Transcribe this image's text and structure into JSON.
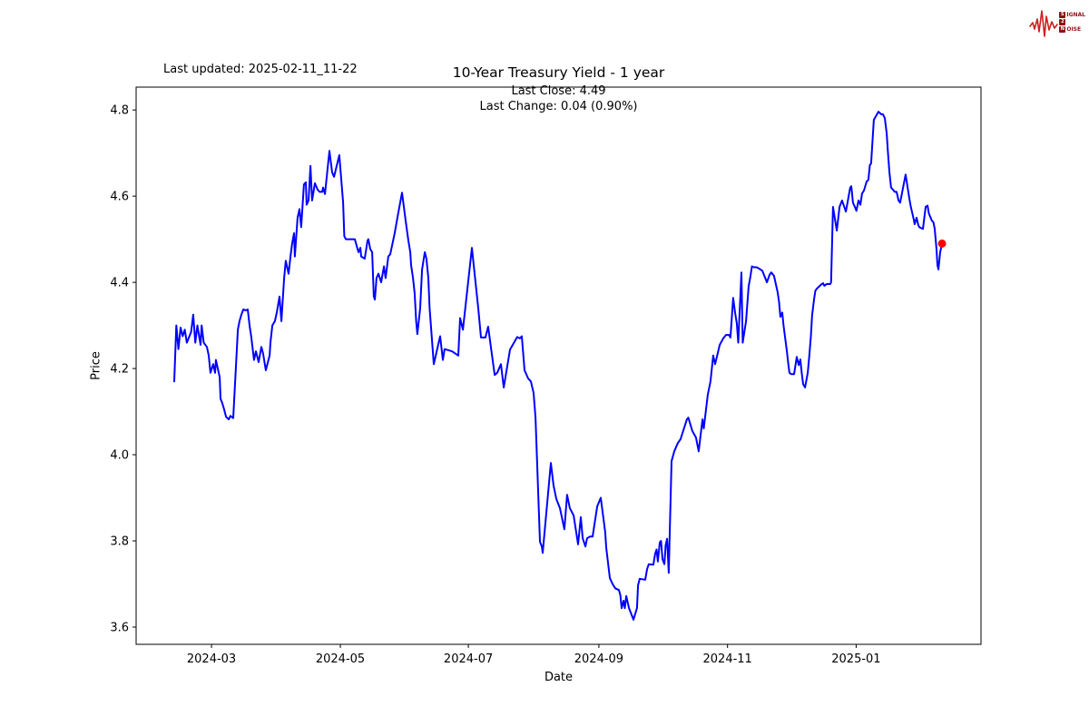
{
  "page": {
    "background": "#ffffff"
  },
  "header": {
    "last_updated": "Last updated: 2025-02-11_11-22",
    "title": "10-Year Treasury Yield - 1 year",
    "subtitle_line1": "Last Close: 4.49",
    "subtitle_line2": "Last Change: 0.04 (0.90%)"
  },
  "logo": {
    "name": "Signal 2 Noise",
    "row1_box": "S",
    "row1_rest": "IGNAL",
    "row2_box": "2",
    "row3_box": "N",
    "row3_rest": "OISE",
    "text_color": "#8b1414",
    "wave_color": "#cc1f1f"
  },
  "chart_data": {
    "type": "line",
    "title": "10-Year Treasury Yield - 1 year",
    "xlabel": "Date",
    "ylabel": "Price",
    "legend": "none",
    "grid": false,
    "line_color": "#0000ff",
    "line_width": 2,
    "marker_color": "#ff0000",
    "last_close": 4.49,
    "last_change": "0.04 (0.90%)",
    "x_axis": {
      "unit": "days since 2024-02-12",
      "start_date": "2024-02-12",
      "end_date": "2025-02-11",
      "lim": [
        -18.1,
        383.2
      ],
      "ticks": [
        {
          "d": 17.7,
          "label": "2024-03"
        },
        {
          "d": 78.9,
          "label": "2024-05"
        },
        {
          "d": 139.7,
          "label": "2024-07"
        },
        {
          "d": 201.7,
          "label": "2024-09"
        },
        {
          "d": 262.8,
          "label": "2024-11"
        },
        {
          "d": 323.9,
          "label": "2025-01"
        }
      ]
    },
    "y_axis": {
      "lim": [
        3.56,
        4.853
      ],
      "ticks": [
        {
          "v": 4.8,
          "label": "4.8"
        },
        {
          "v": 4.6,
          "label": "4.6"
        },
        {
          "v": 4.4,
          "label": "4.4"
        },
        {
          "v": 4.2,
          "label": "4.2"
        },
        {
          "v": 4.0,
          "label": "4.0"
        },
        {
          "v": 3.8,
          "label": "3.8"
        },
        {
          "v": 3.6,
          "label": "3.6"
        }
      ]
    },
    "points": [
      [
        0,
        4.17
      ],
      [
        1,
        4.3
      ],
      [
        2,
        4.245
      ],
      [
        3,
        4.295
      ],
      [
        4,
        4.275
      ],
      [
        5,
        4.29
      ],
      [
        6,
        4.26
      ],
      [
        8,
        4.285
      ],
      [
        9,
        4.325
      ],
      [
        10,
        4.26
      ],
      [
        11,
        4.3
      ],
      [
        12.5,
        4.255
      ],
      [
        13,
        4.3
      ],
      [
        14,
        4.26
      ],
      [
        15.5,
        4.25
      ],
      [
        16.4,
        4.23
      ],
      [
        17.2,
        4.19
      ],
      [
        18.5,
        4.21
      ],
      [
        19.4,
        4.19
      ],
      [
        19.8,
        4.22
      ],
      [
        21.6,
        4.18
      ],
      [
        22,
        4.13
      ],
      [
        22.8,
        4.12
      ],
      [
        23.7,
        4.105
      ],
      [
        24.6,
        4.088
      ],
      [
        25.9,
        4.082
      ],
      [
        26.7,
        4.09
      ],
      [
        28,
        4.085
      ],
      [
        29.3,
        4.205
      ],
      [
        30.2,
        4.29
      ],
      [
        31,
        4.31
      ],
      [
        31.9,
        4.325
      ],
      [
        32.8,
        4.337
      ],
      [
        34,
        4.335
      ],
      [
        34.9,
        4.337
      ],
      [
        35.8,
        4.3
      ],
      [
        36.6,
        4.273
      ],
      [
        37.9,
        4.22
      ],
      [
        38.8,
        4.24
      ],
      [
        40.1,
        4.215
      ],
      [
        41.4,
        4.25
      ],
      [
        42.2,
        4.235
      ],
      [
        43.5,
        4.196
      ],
      [
        45.3,
        4.23
      ],
      [
        45.7,
        4.26
      ],
      [
        46.6,
        4.3
      ],
      [
        47.8,
        4.31
      ],
      [
        48.7,
        4.33
      ],
      [
        50,
        4.367
      ],
      [
        50.9,
        4.31
      ],
      [
        52.2,
        4.41
      ],
      [
        53,
        4.45
      ],
      [
        54.3,
        4.42
      ],
      [
        55.2,
        4.46
      ],
      [
        56,
        4.49
      ],
      [
        56.9,
        4.514
      ],
      [
        57.3,
        4.46
      ],
      [
        58.6,
        4.55
      ],
      [
        59.5,
        4.57
      ],
      [
        60.3,
        4.528
      ],
      [
        61.6,
        4.627
      ],
      [
        62.5,
        4.632
      ],
      [
        62.9,
        4.58
      ],
      [
        63.8,
        4.59
      ],
      [
        64.7,
        4.67
      ],
      [
        65.5,
        4.59
      ],
      [
        66.8,
        4.63
      ],
      [
        68.1,
        4.615
      ],
      [
        69,
        4.61
      ],
      [
        70.3,
        4.61
      ],
      [
        70.7,
        4.62
      ],
      [
        71.6,
        4.605
      ],
      [
        73.7,
        4.705
      ],
      [
        75,
        4.655
      ],
      [
        75.9,
        4.645
      ],
      [
        78.4,
        4.695
      ],
      [
        80.2,
        4.585
      ],
      [
        80.8,
        4.507
      ],
      [
        81.5,
        4.5
      ],
      [
        83.2,
        4.5
      ],
      [
        85,
        4.5
      ],
      [
        85.8,
        4.5
      ],
      [
        87.5,
        4.47
      ],
      [
        88.4,
        4.48
      ],
      [
        88.8,
        4.46
      ],
      [
        90.5,
        4.455
      ],
      [
        91.8,
        4.497
      ],
      [
        92.2,
        4.5
      ],
      [
        93.1,
        4.477
      ],
      [
        94,
        4.47
      ],
      [
        94.8,
        4.367
      ],
      [
        95.3,
        4.36
      ],
      [
        96.1,
        4.41
      ],
      [
        97,
        4.42
      ],
      [
        98.3,
        4.4
      ],
      [
        99.6,
        4.437
      ],
      [
        100.4,
        4.41
      ],
      [
        101.7,
        4.46
      ],
      [
        102.6,
        4.465
      ],
      [
        104.7,
        4.514
      ],
      [
        106,
        4.55
      ],
      [
        108.2,
        4.608
      ],
      [
        109.9,
        4.543
      ],
      [
        111.2,
        4.497
      ],
      [
        112.1,
        4.47
      ],
      [
        112.5,
        4.44
      ],
      [
        113.4,
        4.41
      ],
      [
        114.2,
        4.375
      ],
      [
        114.9,
        4.31
      ],
      [
        115.5,
        4.28
      ],
      [
        116.8,
        4.34
      ],
      [
        117.7,
        4.43
      ],
      [
        119,
        4.47
      ],
      [
        119.8,
        4.455
      ],
      [
        120.7,
        4.41
      ],
      [
        121.3,
        4.34
      ],
      [
        123.3,
        4.21
      ],
      [
        126.3,
        4.275
      ],
      [
        127.6,
        4.22
      ],
      [
        128.4,
        4.245
      ],
      [
        131.9,
        4.24
      ],
      [
        134.9,
        4.23
      ],
      [
        135.8,
        4.317
      ],
      [
        137.1,
        4.29
      ],
      [
        141.4,
        4.48
      ],
      [
        144.4,
        4.34
      ],
      [
        145.7,
        4.272
      ],
      [
        147.8,
        4.272
      ],
      [
        149.1,
        4.297
      ],
      [
        152.2,
        4.185
      ],
      [
        153.4,
        4.19
      ],
      [
        155.2,
        4.21
      ],
      [
        156.5,
        4.156
      ],
      [
        159.5,
        4.244
      ],
      [
        160.8,
        4.255
      ],
      [
        162.9,
        4.273
      ],
      [
        164.2,
        4.27
      ],
      [
        165.1,
        4.275
      ],
      [
        166.4,
        4.196
      ],
      [
        168.1,
        4.177
      ],
      [
        169.4,
        4.17
      ],
      [
        170.7,
        4.143
      ],
      [
        171.6,
        4.086
      ],
      [
        173.7,
        3.798
      ],
      [
        174.6,
        3.787
      ],
      [
        175,
        3.772
      ],
      [
        178.9,
        3.981
      ],
      [
        180.2,
        3.928
      ],
      [
        181.5,
        3.897
      ],
      [
        183.2,
        3.876
      ],
      [
        185.3,
        3.827
      ],
      [
        186.6,
        3.907
      ],
      [
        187.9,
        3.876
      ],
      [
        189.7,
        3.859
      ],
      [
        191.8,
        3.792
      ],
      [
        193.1,
        3.855
      ],
      [
        194,
        3.806
      ],
      [
        195.3,
        3.787
      ],
      [
        196.1,
        3.806
      ],
      [
        197.4,
        3.81
      ],
      [
        198.7,
        3.81
      ],
      [
        200.9,
        3.88
      ],
      [
        202.6,
        3.9
      ],
      [
        204.7,
        3.82
      ],
      [
        205.2,
        3.785
      ],
      [
        206.9,
        3.714
      ],
      [
        208.2,
        3.7
      ],
      [
        209.5,
        3.69
      ],
      [
        211.2,
        3.686
      ],
      [
        211.9,
        3.674
      ],
      [
        212.5,
        3.644
      ],
      [
        213.4,
        3.661
      ],
      [
        214,
        3.644
      ],
      [
        214.7,
        3.672
      ],
      [
        216,
        3.644
      ],
      [
        217.7,
        3.623
      ],
      [
        218.1,
        3.617
      ],
      [
        219.8,
        3.644
      ],
      [
        220.3,
        3.697
      ],
      [
        221.1,
        3.712
      ],
      [
        223.7,
        3.71
      ],
      [
        224.6,
        3.735
      ],
      [
        225.4,
        3.746
      ],
      [
        227.6,
        3.745
      ],
      [
        228.4,
        3.77
      ],
      [
        229.1,
        3.78
      ],
      [
        229.7,
        3.752
      ],
      [
        230.6,
        3.796
      ],
      [
        231.2,
        3.8
      ],
      [
        231.9,
        3.758
      ],
      [
        232.8,
        3.746
      ],
      [
        233.4,
        3.79
      ],
      [
        234.1,
        3.805
      ],
      [
        234.9,
        3.726
      ],
      [
        236.2,
        3.985
      ],
      [
        237.5,
        4.008
      ],
      [
        239.2,
        4.027
      ],
      [
        240.5,
        4.036
      ],
      [
        243.5,
        4.082
      ],
      [
        244.2,
        4.086
      ],
      [
        246.1,
        4.055
      ],
      [
        247.8,
        4.04
      ],
      [
        249.1,
        4.008
      ],
      [
        250.9,
        4.082
      ],
      [
        251.5,
        4.061
      ],
      [
        253.4,
        4.139
      ],
      [
        254.7,
        4.17
      ],
      [
        256,
        4.23
      ],
      [
        256.9,
        4.21
      ],
      [
        259.1,
        4.255
      ],
      [
        260.8,
        4.27
      ],
      [
        262.1,
        4.278
      ],
      [
        263.4,
        4.278
      ],
      [
        264.2,
        4.272
      ],
      [
        265.5,
        4.364
      ],
      [
        266.4,
        4.33
      ],
      [
        267.2,
        4.305
      ],
      [
        267.9,
        4.26
      ],
      [
        269.4,
        4.423
      ],
      [
        270,
        4.26
      ],
      [
        271.6,
        4.31
      ],
      [
        272.8,
        4.39
      ],
      [
        273.7,
        4.415
      ],
      [
        274.4,
        4.437
      ],
      [
        275.4,
        4.435
      ],
      [
        276.7,
        4.435
      ],
      [
        278.4,
        4.43
      ],
      [
        279.3,
        4.427
      ],
      [
        281.5,
        4.4
      ],
      [
        282.8,
        4.418
      ],
      [
        283.6,
        4.423
      ],
      [
        284.9,
        4.415
      ],
      [
        286.6,
        4.377
      ],
      [
        287.3,
        4.354
      ],
      [
        287.9,
        4.32
      ],
      [
        288.8,
        4.33
      ],
      [
        289.4,
        4.3
      ],
      [
        291,
        4.24
      ],
      [
        291.6,
        4.213
      ],
      [
        292.2,
        4.19
      ],
      [
        293.1,
        4.187
      ],
      [
        294.4,
        4.187
      ],
      [
        295.7,
        4.227
      ],
      [
        296.6,
        4.208
      ],
      [
        297.4,
        4.221
      ],
      [
        298.1,
        4.187
      ],
      [
        298.7,
        4.164
      ],
      [
        299.6,
        4.156
      ],
      [
        300.9,
        4.19
      ],
      [
        301.7,
        4.232
      ],
      [
        302.4,
        4.274
      ],
      [
        303,
        4.324
      ],
      [
        303.9,
        4.36
      ],
      [
        304.5,
        4.38
      ],
      [
        305.2,
        4.385
      ],
      [
        307.3,
        4.395
      ],
      [
        308.2,
        4.398
      ],
      [
        308.8,
        4.392
      ],
      [
        309.9,
        4.396
      ],
      [
        311.6,
        4.396
      ],
      [
        312,
        4.4
      ],
      [
        312.9,
        4.575
      ],
      [
        314.7,
        4.52
      ],
      [
        316,
        4.575
      ],
      [
        317.2,
        4.59
      ],
      [
        318.1,
        4.577
      ],
      [
        319,
        4.564
      ],
      [
        321.1,
        4.62
      ],
      [
        321.6,
        4.623
      ],
      [
        322.4,
        4.585
      ],
      [
        323.3,
        4.575
      ],
      [
        324,
        4.566
      ],
      [
        325,
        4.59
      ],
      [
        325.9,
        4.58
      ],
      [
        326.7,
        4.606
      ],
      [
        327.6,
        4.613
      ],
      [
        328.9,
        4.634
      ],
      [
        329.7,
        4.638
      ],
      [
        330.4,
        4.672
      ],
      [
        331,
        4.676
      ],
      [
        332.3,
        4.777
      ],
      [
        333.2,
        4.785
      ],
      [
        334.5,
        4.796
      ],
      [
        335.8,
        4.79
      ],
      [
        336.6,
        4.79
      ],
      [
        337.5,
        4.781
      ],
      [
        338.4,
        4.745
      ],
      [
        339,
        4.7
      ],
      [
        339.7,
        4.655
      ],
      [
        340.5,
        4.62
      ],
      [
        341.4,
        4.615
      ],
      [
        342.2,
        4.61
      ],
      [
        343.1,
        4.61
      ],
      [
        344,
        4.59
      ],
      [
        344.8,
        4.585
      ],
      [
        347,
        4.64
      ],
      [
        347.4,
        4.65
      ],
      [
        349.1,
        4.596
      ],
      [
        349.8,
        4.577
      ],
      [
        350.4,
        4.564
      ],
      [
        351.3,
        4.545
      ],
      [
        351.7,
        4.535
      ],
      [
        352.6,
        4.55
      ],
      [
        353.4,
        4.533
      ],
      [
        353.9,
        4.528
      ],
      [
        355.6,
        4.524
      ],
      [
        356.9,
        4.575
      ],
      [
        357.8,
        4.578
      ],
      [
        358.4,
        4.56
      ],
      [
        359.9,
        4.543
      ],
      [
        360.6,
        4.539
      ],
      [
        361.2,
        4.524
      ],
      [
        362.1,
        4.476
      ],
      [
        362.5,
        4.44
      ],
      [
        363,
        4.43
      ],
      [
        363.8,
        4.47
      ],
      [
        364.7,
        4.49
      ]
    ]
  }
}
